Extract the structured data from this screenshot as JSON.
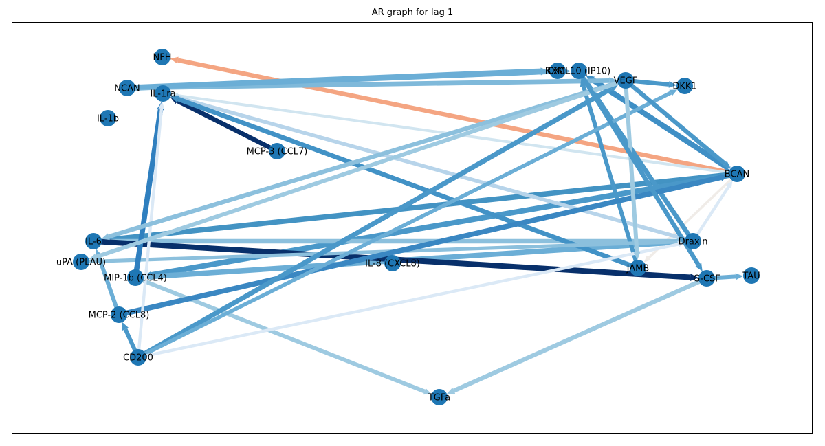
{
  "title": "AR graph for lag 1",
  "nodes": [
    {
      "id": "NFH",
      "label": "NFH"
    },
    {
      "id": "RXML",
      "label": "RXML"
    },
    {
      "id": "CXCL10",
      "label": "CXCL10 (IP10)"
    },
    {
      "id": "VEGF",
      "label": "VEGF"
    },
    {
      "id": "DKK1",
      "label": "DKK1"
    },
    {
      "id": "NCAN",
      "label": "NCAN"
    },
    {
      "id": "IL1ra",
      "label": "IL-1ra"
    },
    {
      "id": "IL1b",
      "label": "IL-1b"
    },
    {
      "id": "MCP3",
      "label": "MCP-3 (CCL7)"
    },
    {
      "id": "BCAN",
      "label": "BCAN"
    },
    {
      "id": "IL6",
      "label": "IL-6"
    },
    {
      "id": "Draxin",
      "label": "Draxin"
    },
    {
      "id": "uPA",
      "label": "uPA (PLAU)"
    },
    {
      "id": "IL8",
      "label": "IL-8 (CXCL8)"
    },
    {
      "id": "JAMB",
      "label": "JAMB"
    },
    {
      "id": "TAU",
      "label": "TAU"
    },
    {
      "id": "MIP1b",
      "label": "MIP-1b (CCL4)"
    },
    {
      "id": "GCSF",
      "label": "G-CSF"
    },
    {
      "id": "MCP2",
      "label": "MCP-2 (CCL8)"
    },
    {
      "id": "CD200",
      "label": "CD200"
    },
    {
      "id": "TGFa",
      "label": "TGFa"
    }
  ],
  "edges": [
    {
      "source": "BCAN",
      "target": "NFH",
      "weight": 0.55,
      "color": "#f4a582"
    },
    {
      "source": "BCAN",
      "target": "IL1ra",
      "weight": 0.25,
      "color": "#d1e5f0"
    },
    {
      "source": "BCAN",
      "target": "IL6",
      "weight": 0.7,
      "color": "#4393c3"
    },
    {
      "source": "BCAN",
      "target": "MIP1b",
      "weight": 0.75,
      "color": "#4a98c9"
    },
    {
      "source": "BCAN",
      "target": "CXCL10",
      "weight": 0.75,
      "color": "#3f8fc5"
    },
    {
      "source": "BCAN",
      "target": "VEGF",
      "weight": 0.4,
      "color": "#c6dbef"
    },
    {
      "source": "BCAN",
      "target": "JAMB",
      "weight": 0.2,
      "color": "#f0ece8"
    },
    {
      "source": "Draxin",
      "target": "IL1ra",
      "weight": 0.45,
      "color": "#b7d4ea"
    },
    {
      "source": "Draxin",
      "target": "IL6",
      "weight": 0.55,
      "color": "#8cc0dd"
    },
    {
      "source": "Draxin",
      "target": "MIP1b",
      "weight": 0.7,
      "color": "#6baed6"
    },
    {
      "source": "Draxin",
      "target": "CXCL10",
      "weight": 0.6,
      "color": "#4a98c9"
    },
    {
      "source": "Draxin",
      "target": "BCAN",
      "weight": 0.3,
      "color": "#dbe9f6"
    },
    {
      "source": "NCAN",
      "target": "RXML",
      "weight": 0.85,
      "color": "#6baed6"
    },
    {
      "source": "NCAN",
      "target": "VEGF",
      "weight": 0.6,
      "color": "#7fb9da"
    },
    {
      "source": "NCAN",
      "target": "CXCL10",
      "weight": 0.55,
      "color": "#6baed6"
    },
    {
      "source": "MCP3",
      "target": "IL1ra",
      "weight": 0.6,
      "color": "#08306b"
    },
    {
      "source": "JAMB",
      "target": "IL1ra",
      "weight": 0.6,
      "color": "#4292c6"
    },
    {
      "source": "JAMB",
      "target": "CXCL10",
      "weight": 0.5,
      "color": "#4a98c9"
    },
    {
      "source": "IL6",
      "target": "GCSF",
      "weight": 0.75,
      "color": "#08306b"
    },
    {
      "source": "uPA",
      "target": "Draxin",
      "weight": 0.4,
      "color": "#8cc0dd"
    },
    {
      "source": "MIP1b",
      "target": "IL1ra",
      "weight": 0.7,
      "color": "#2f7fbf"
    },
    {
      "source": "MIP1b",
      "target": "TGFa",
      "weight": 0.5,
      "color": "#9ecae1"
    },
    {
      "source": "MCP2",
      "target": "BCAN",
      "weight": 0.7,
      "color": "#3a87c2"
    },
    {
      "source": "MCP2",
      "target": "IL6",
      "weight": 0.5,
      "color": "#6baed6"
    },
    {
      "source": "CD200",
      "target": "VEGF",
      "weight": 0.65,
      "color": "#4a98c9"
    },
    {
      "source": "CD200",
      "target": "DKK1",
      "weight": 0.45,
      "color": "#6baed6"
    },
    {
      "source": "CD200",
      "target": "IL1ra",
      "weight": 0.3,
      "color": "#dbe9f6"
    },
    {
      "source": "CD200",
      "target": "Draxin",
      "weight": 0.3,
      "color": "#dbe9f6"
    },
    {
      "source": "CD200",
      "target": "MCP2",
      "weight": 0.5,
      "color": "#4a98c9"
    },
    {
      "source": "VEGF",
      "target": "JAMB",
      "weight": 0.5,
      "color": "#9ecae1"
    },
    {
      "source": "VEGF",
      "target": "IL6",
      "weight": 0.55,
      "color": "#8cc0dd"
    },
    {
      "source": "VEGF",
      "target": "uPA",
      "weight": 0.5,
      "color": "#9ecae1"
    },
    {
      "source": "VEGF",
      "target": "DKK1",
      "weight": 0.5,
      "color": "#4a98c9"
    },
    {
      "source": "VEGF",
      "target": "BCAN",
      "weight": 0.55,
      "color": "#4a98c9"
    },
    {
      "source": "CXCL10",
      "target": "GCSF",
      "weight": 0.55,
      "color": "#4a98c9"
    },
    {
      "source": "GCSF",
      "target": "TGFa",
      "weight": 0.55,
      "color": "#9ecae1"
    },
    {
      "source": "GCSF",
      "target": "TAU",
      "weight": 0.5,
      "color": "#6baed6"
    }
  ],
  "colors": {
    "node": "#1f77b4"
  }
}
